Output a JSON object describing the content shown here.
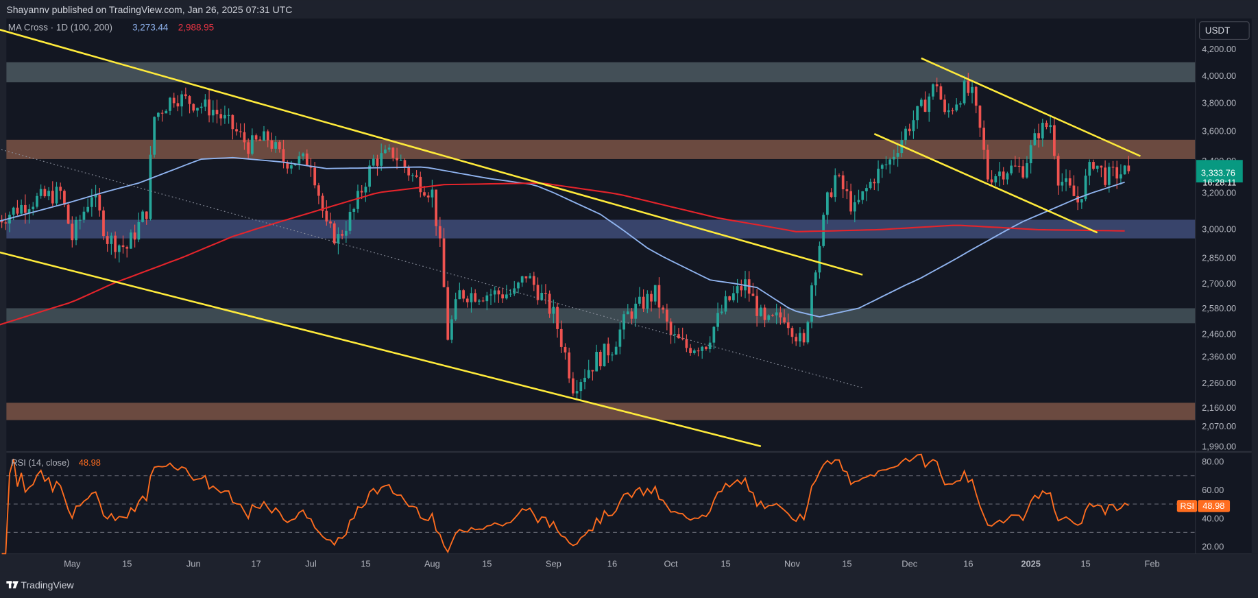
{
  "header": {
    "published": "Shayannv published on TradingView.com, Jan 26, 2025 07:31 UTC"
  },
  "indicator": {
    "name": "MA Cross · 1D (100, 200)",
    "ma_fast_value": "3,273.44",
    "ma_slow_value": "2,988.95"
  },
  "currency_button": "USDT",
  "price_tag": {
    "price": "3,333.76",
    "countdown": "16:28:11"
  },
  "rsi": {
    "title": "RSI (14, close)",
    "value": "48.98",
    "tag_label": "RSI"
  },
  "footer": {
    "brand": "TradingView"
  },
  "colors": {
    "bg": "#131722",
    "up": "#26a69a",
    "down": "#ef5350",
    "ma_fast": "#90b4f0",
    "ma_slow": "#e5242b",
    "trend": "#ffeb3b",
    "rsi": "#ff6d1f"
  },
  "chart_data": {
    "type": "candlestick",
    "symbol_quote": "USDT",
    "timeframe": "1D",
    "price_ticks": [
      4200,
      4000,
      3800,
      3600,
      3400,
      3200,
      3000,
      2850,
      2700,
      2580,
      2460,
      2360,
      2260,
      2160,
      2070,
      1990
    ],
    "price_tick_labels": [
      "4,200.00",
      "4,000.00",
      "3,800.00",
      "3,600.00",
      "3,400.00",
      "3,200.00",
      "3,000.00",
      "2,850.00",
      "2,700.00",
      "2,580.00",
      "2,460.00",
      "2,360.00",
      "2,260.00",
      "2,160.00",
      "2,070.00",
      "1,990.00"
    ],
    "time_ticks": [
      [
        "May",
        "2024-05-01"
      ],
      [
        "15",
        "2024-05-15"
      ],
      [
        "Jun",
        "2024-06-01"
      ],
      [
        "17",
        "2024-06-17"
      ],
      [
        "Jul",
        "2024-07-01"
      ],
      [
        "15",
        "2024-07-15"
      ],
      [
        "Aug",
        "2024-08-01"
      ],
      [
        "15",
        "2024-08-15"
      ],
      [
        "Sep",
        "2024-09-01"
      ],
      [
        "16",
        "2024-09-16"
      ],
      [
        "Oct",
        "2024-10-01"
      ],
      [
        "15",
        "2024-10-15"
      ],
      [
        "Nov",
        "2024-11-01"
      ],
      [
        "15",
        "2024-11-15"
      ],
      [
        "Dec",
        "2024-12-01"
      ],
      [
        "16",
        "2024-12-16"
      ],
      [
        "2025",
        "2025-01-01"
      ],
      [
        "15",
        "2025-01-15"
      ],
      [
        "Feb",
        "2025-02-01"
      ]
    ],
    "close_path": [
      [
        "2024-04-12",
        3050
      ],
      [
        "2024-04-20",
        3150
      ],
      [
        "2024-04-28",
        3200
      ],
      [
        "2024-05-01",
        2950
      ],
      [
        "2024-05-06",
        3200
      ],
      [
        "2024-05-10",
        2950
      ],
      [
        "2024-05-15",
        2900
      ],
      [
        "2024-05-20",
        3100
      ],
      [
        "2024-05-22",
        3700
      ],
      [
        "2024-05-27",
        3850
      ],
      [
        "2024-06-01",
        3800
      ],
      [
        "2024-06-06",
        3750
      ],
      [
        "2024-06-10",
        3650
      ],
      [
        "2024-06-15",
        3500
      ],
      [
        "2024-06-20",
        3550
      ],
      [
        "2024-06-24",
        3400
      ],
      [
        "2024-07-01",
        3400
      ],
      [
        "2024-07-05",
        3000
      ],
      [
        "2024-07-08",
        2950
      ],
      [
        "2024-07-12",
        3100
      ],
      [
        "2024-07-17",
        3400
      ],
      [
        "2024-07-22",
        3450
      ],
      [
        "2024-07-27",
        3300
      ],
      [
        "2024-08-01",
        3200
      ],
      [
        "2024-08-03",
        2900
      ],
      [
        "2024-08-05",
        2450
      ],
      [
        "2024-08-08",
        2650
      ],
      [
        "2024-08-15",
        2650
      ],
      [
        "2024-08-22",
        2650
      ],
      [
        "2024-08-25",
        2750
      ],
      [
        "2024-09-01",
        2550
      ],
      [
        "2024-09-06",
        2250
      ],
      [
        "2024-09-12",
        2350
      ],
      [
        "2024-09-16",
        2400
      ],
      [
        "2024-09-20",
        2550
      ],
      [
        "2024-09-27",
        2650
      ],
      [
        "2024-10-01",
        2450
      ],
      [
        "2024-10-05",
        2400
      ],
      [
        "2024-10-10",
        2420
      ],
      [
        "2024-10-15",
        2600
      ],
      [
        "2024-10-20",
        2700
      ],
      [
        "2024-10-25",
        2500
      ],
      [
        "2024-10-30",
        2550
      ],
      [
        "2024-11-04",
        2400
      ],
      [
        "2024-11-06",
        2700
      ],
      [
        "2024-11-10",
        3150
      ],
      [
        "2024-11-12",
        3300
      ],
      [
        "2024-11-17",
        3100
      ],
      [
        "2024-11-22",
        3300
      ],
      [
        "2024-11-26",
        3400
      ],
      [
        "2024-11-30",
        3600
      ],
      [
        "2024-12-05",
        3800
      ],
      [
        "2024-12-08",
        3950
      ],
      [
        "2024-12-10",
        3700
      ],
      [
        "2024-12-15",
        3900
      ],
      [
        "2024-12-17",
        3850
      ],
      [
        "2024-12-19",
        3600
      ],
      [
        "2024-12-21",
        3300
      ],
      [
        "2024-12-26",
        3350
      ],
      [
        "2024-12-30",
        3350
      ],
      [
        "2025-01-03",
        3600
      ],
      [
        "2025-01-06",
        3650
      ],
      [
        "2025-01-08",
        3300
      ],
      [
        "2025-01-13",
        3150
      ],
      [
        "2025-01-17",
        3400
      ],
      [
        "2025-01-20",
        3300
      ],
      [
        "2025-01-26",
        3333.76
      ]
    ],
    "zones": [
      {
        "name": "resistance-4000",
        "from": 3950,
        "to": 4100,
        "color": "#434f57"
      },
      {
        "name": "resistance-3500",
        "from": 3410,
        "to": 3540,
        "color": "#6b4a40"
      },
      {
        "name": "support-3000",
        "from": 2950,
        "to": 3050,
        "color": "#38446b"
      },
      {
        "name": "support-2550",
        "from": 2510,
        "to": 2580,
        "color": "#3d4a52"
      },
      {
        "name": "support-2150",
        "from": 2100,
        "to": 2180,
        "color": "#6b4a40"
      }
    ],
    "trendlines": [
      {
        "name": "channel-upper",
        "from": [
          "2024-04-12",
          4350
        ],
        "to": [
          "2024-11-19",
          2750
        ],
        "style": "solid"
      },
      {
        "name": "channel-lower",
        "from": [
          "2024-04-12",
          2880
        ],
        "to": [
          "2024-10-24",
          1990
        ],
        "style": "solid"
      },
      {
        "name": "flag-upper",
        "from": [
          "2024-12-04",
          4130
        ],
        "to": [
          "2025-01-29",
          3430
        ],
        "style": "solid"
      },
      {
        "name": "flag-lower",
        "from": [
          "2024-11-22",
          3580
        ],
        "to": [
          "2025-01-18",
          2980
        ],
        "style": "solid"
      },
      {
        "name": "dotted-trend",
        "from": [
          "2024-04-12",
          3480
        ],
        "to": [
          "2024-11-19",
          2240
        ],
        "style": "dotted"
      }
    ],
    "ma100_path": [
      [
        "2024-04-12",
        3040
      ],
      [
        "2024-05-01",
        3150
      ],
      [
        "2024-05-18",
        3260
      ],
      [
        "2024-06-03",
        3410
      ],
      [
        "2024-06-11",
        3420
      ],
      [
        "2024-06-24",
        3390
      ],
      [
        "2024-07-05",
        3350
      ],
      [
        "2024-07-30",
        3360
      ],
      [
        "2024-08-15",
        3290
      ],
      [
        "2024-08-27",
        3250
      ],
      [
        "2024-09-13",
        3080
      ],
      [
        "2024-09-25",
        2900
      ],
      [
        "2024-10-11",
        2720
      ],
      [
        "2024-10-23",
        2680
      ],
      [
        "2024-11-01",
        2570
      ],
      [
        "2024-11-08",
        2540
      ],
      [
        "2024-11-18",
        2580
      ],
      [
        "2024-12-03",
        2720
      ],
      [
        "2024-12-15",
        2870
      ],
      [
        "2024-12-30",
        3040
      ],
      [
        "2025-01-13",
        3170
      ],
      [
        "2025-01-26",
        3273.44
      ]
    ],
    "ma200_path": [
      [
        "2024-04-12",
        2500
      ],
      [
        "2024-05-01",
        2610
      ],
      [
        "2024-05-22",
        2790
      ],
      [
        "2024-06-11",
        2960
      ],
      [
        "2024-07-01",
        3090
      ],
      [
        "2024-07-18",
        3200
      ],
      [
        "2024-08-04",
        3250
      ],
      [
        "2024-08-29",
        3260
      ],
      [
        "2024-09-18",
        3190
      ],
      [
        "2024-10-13",
        3060
      ],
      [
        "2024-11-02",
        2985
      ],
      [
        "2024-11-23",
        2995
      ],
      [
        "2024-12-13",
        3020
      ],
      [
        "2025-01-03",
        2995
      ],
      [
        "2025-01-26",
        2988.95
      ]
    ],
    "rsi_ticks": [
      80,
      60,
      40,
      20
    ],
    "rsi_bands": [
      70,
      50,
      30
    ],
    "rsi_last": 48.98
  }
}
